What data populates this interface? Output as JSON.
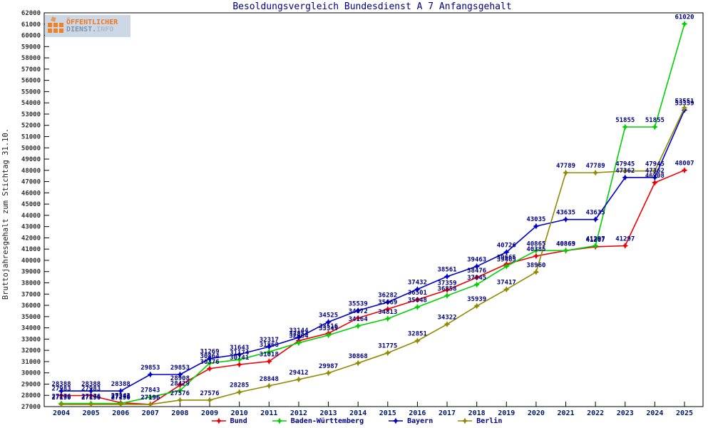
{
  "header": {
    "title": "Besoldungsvergleich Bundesdienst A 7 Anfangsgehalt"
  },
  "logo": {
    "line1": "ÖFFENTLICHER",
    "line2a": "DIENST.",
    "line2b": "INFO"
  },
  "colors": {
    "title": "#000080",
    "data_label": "#000080",
    "axis": "#000000",
    "tick_label": "#303030",
    "year_label": "#001a66",
    "legend_text": "#000080",
    "bund": "#ee0000",
    "baden_wuerttemberg": "#00d000",
    "bayern": "#0000cd",
    "berlin": "#918a00"
  },
  "chart_data": {
    "type": "line",
    "title": "Besoldungsvergleich Bundesdienst A 7 Anfangsgehalt",
    "xlabel": "",
    "ylabel": "Bruttojahresgehalt zum Stichtag 31.10.",
    "ylim": [
      27000,
      62000
    ],
    "ytick_step": 1000,
    "grid": false,
    "legend_position": "bottom",
    "point_labels": true,
    "x": [
      2004,
      2005,
      2006,
      2007,
      2008,
      2009,
      2010,
      2011,
      2012,
      2013,
      2014,
      2015,
      2016,
      2017,
      2018,
      2019,
      2020,
      2021,
      2022,
      2023,
      2024,
      2025
    ],
    "series": [
      {
        "name": "Bund",
        "color": "#ee0000",
        "values": [
          27983,
          27983,
          27343,
          27196,
          28908,
          30376,
          30741,
          31018,
          32854,
          33516,
          34872,
          35669,
          36501,
          37359,
          38476,
          39665,
          40385,
          40863,
          41207,
          41297,
          46908,
          48007
        ]
      },
      {
        "name": "Baden-Württemberg",
        "color": "#00d000",
        "values": [
          27276,
          27276,
          27276,
          27843,
          28429,
          30864,
          31174,
          31868,
          32664,
          33349,
          34164,
          34813,
          35848,
          36858,
          37845,
          39465,
          40865,
          40869,
          41297,
          51855,
          51855,
          61020
        ]
      },
      {
        "name": "Bayern",
        "color": "#0000cd",
        "values": [
          28388,
          28388,
          28388,
          29853,
          29853,
          31269,
          31643,
          32317,
          33144,
          34525,
          35539,
          36282,
          37432,
          38561,
          39463,
          40726,
          43035,
          43635,
          43635,
          47362,
          47362,
          53359
        ]
      },
      {
        "name": "Berlin",
        "color": "#918a00",
        "values": [
          27196,
          27196,
          27196,
          27196,
          27576,
          27576,
          28285,
          28848,
          29412,
          29987,
          30868,
          31775,
          32851,
          34322,
          35939,
          37417,
          38960,
          47789,
          47789,
          47945,
          47945,
          53551
        ]
      }
    ]
  }
}
